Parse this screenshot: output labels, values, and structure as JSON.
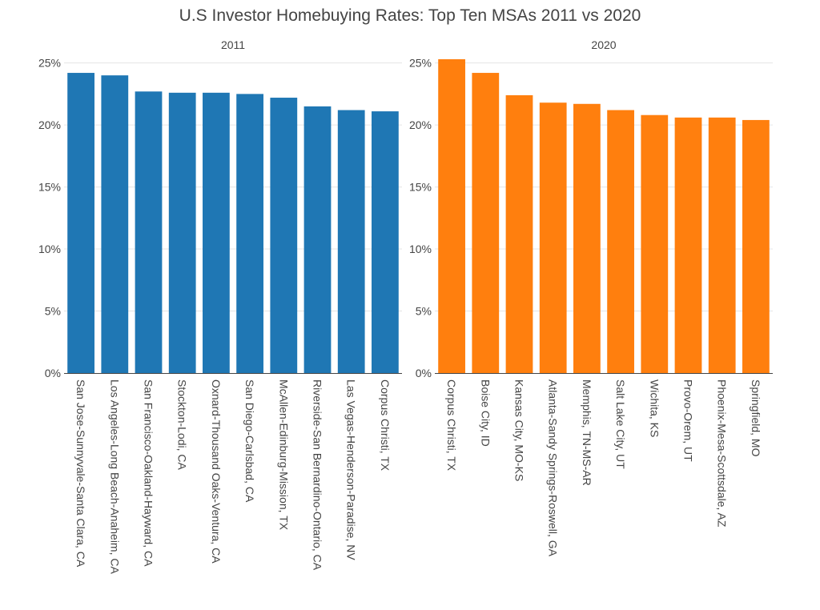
{
  "title": "U.S Investor Homebuying Rates: Top Ten MSAs 2011 vs 2020",
  "chart_data": [
    {
      "type": "bar",
      "subplot_title": "2011",
      "color": "#1f77b4",
      "ylim": [
        0,
        25.3
      ],
      "yticks": [
        0,
        5,
        10,
        15,
        20,
        25
      ],
      "ytick_labels": [
        "0%",
        "5%",
        "10%",
        "15%",
        "20%",
        "25%"
      ],
      "grid": true,
      "categories": [
        "San Jose-Sunnyvale-Santa Clara, CA",
        "Los Angeles-Long Beach-Anaheim, CA",
        "San Francisco-Oakland-Hayward, CA",
        "Stockton-Lodi, CA",
        "Oxnard-Thousand Oaks-Ventura, CA",
        "San Diego-Carlsbad, CA",
        "McAllen-Edinburg-Mission, TX",
        "Riverside-San Bernardino-Ontario, CA",
        "Las Vegas-Henderson-Paradise, NV",
        "Corpus Christi, TX"
      ],
      "values": [
        24.2,
        24.0,
        22.7,
        22.6,
        22.6,
        22.5,
        22.2,
        21.5,
        21.2,
        21.1
      ]
    },
    {
      "type": "bar",
      "subplot_title": "2020",
      "color": "#ff7f0e",
      "ylim": [
        0,
        25.3
      ],
      "yticks": [
        0,
        5,
        10,
        15,
        20,
        25
      ],
      "ytick_labels": [
        "0%",
        "5%",
        "10%",
        "15%",
        "20%",
        "25%"
      ],
      "grid": true,
      "categories": [
        "Corpus Christi, TX",
        "Boise City, ID",
        "Kansas City, MO-KS",
        "Atlanta-Sandy Springs-Roswell, GA",
        "Memphis, TN-MS-AR",
        "Salt Lake City, UT",
        "Wichita, KS",
        "Provo-Orem, UT",
        "Phoenix-Mesa-Scottsdale, AZ",
        "Springfield, MO"
      ],
      "values": [
        25.3,
        24.2,
        22.4,
        21.8,
        21.7,
        21.2,
        20.8,
        20.6,
        20.6,
        20.4
      ]
    }
  ]
}
